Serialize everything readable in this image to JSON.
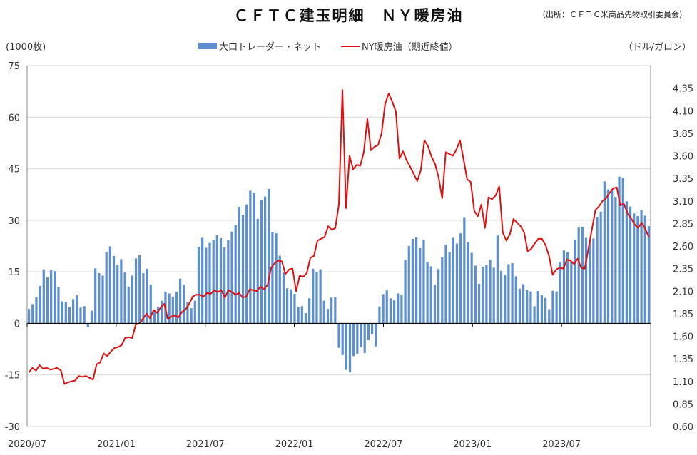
{
  "title": "ＣＦＴＣ建玉明細　ＮＹ暖房油",
  "source": "（出所：ＣＦＴＣ米商品先物取引委員会）",
  "chart_data": {
    "type": "bar+line",
    "title": "ＣＦＴＣ建玉明細　ＮＹ暖房油",
    "y_left_label": "(1000枚)",
    "y_right_label": "（ドル/ガロン）",
    "y_left_range": [
      -30,
      75
    ],
    "y_left_ticks": [
      "75",
      "60",
      "45",
      "30",
      "15",
      "0",
      "-15",
      "-30"
    ],
    "y_right_range": [
      0.6,
      4.6
    ],
    "y_right_ticks": [
      "4.35",
      "4.10",
      "3.85",
      "3.60",
      "3.35",
      "3.10",
      "2.85",
      "2.60",
      "2.35",
      "2.10",
      "1.85",
      "1.60",
      "1.35",
      "1.10",
      "0.85",
      "0.60"
    ],
    "x_ticks": [
      "2020/07",
      "2021/01",
      "2021/07",
      "2022/01",
      "2022/07",
      "2023/01",
      "2023/07"
    ],
    "grid": true,
    "legend_position": "top",
    "series": [
      {
        "name": "大口トレーダー・ネット",
        "type": "bar",
        "axis": "left",
        "color": "#5b8fd2",
        "values": [
          4.2,
          5.6,
          7.7,
          10.9,
          15.7,
          13.4,
          15.5,
          15.2,
          10.6,
          6.4,
          6.2,
          4.8,
          7.1,
          8.2,
          4.6,
          5.0,
          -1.1,
          3.7,
          16.0,
          14.6,
          13.9,
          20.7,
          22.4,
          19.6,
          16.9,
          18.7,
          14.8,
          10.7,
          13.9,
          18.9,
          19.8,
          14.6,
          15.9,
          11.3,
          3.6,
          4.8,
          6.6,
          9.2,
          8.7,
          7.8,
          9.2,
          13.0,
          11.2,
          6.1,
          4.4,
          6.6,
          22.3,
          24.9,
          22.0,
          23.4,
          24.3,
          25.6,
          24.8,
          22.1,
          24.2,
          26.7,
          28.6,
          33.9,
          31.6,
          34.6,
          38.6,
          38.0,
          30.4,
          35.9,
          36.9,
          39.1,
          26.6,
          26.2,
          19.7,
          14.8,
          10.2,
          9.9,
          8.6,
          4.8,
          5.0,
          3.0,
          7.3,
          15.9,
          14.9,
          15.7,
          6.6,
          4.2,
          7.5,
          7.6,
          -7.1,
          -9.2,
          -13.5,
          -14.2,
          -9.5,
          -8.8,
          -6.9,
          -8.6,
          -4.9,
          -3.2,
          -6.7,
          4.9,
          8.5,
          9.6,
          7.3,
          6.7,
          8.7,
          8.2,
          18.5,
          22.5,
          24.6,
          25.0,
          21.9,
          24.4,
          17.9,
          16.6,
          11.2,
          15.8,
          19.3,
          22.9,
          20.7,
          24.9,
          23.2,
          26.2,
          30.9,
          23.6,
          20.5,
          16.8,
          11.5,
          16.5,
          16.9,
          18.5,
          16.2,
          25.6,
          15.3,
          14.0,
          17.2,
          17.5,
          13.7,
          10.1,
          11.4,
          9.7,
          9.3,
          5.0,
          9.4,
          8.2,
          7.4,
          4.1,
          9.5,
          9.3,
          17.9,
          21.2,
          20.7,
          17.9,
          24.4,
          27.9,
          28.1,
          24.9,
          24.2,
          24.7,
          31.0,
          32.5,
          41.3,
          39.0,
          39.1,
          36.8,
          42.7,
          42.3,
          35.5,
          34.0,
          32.0,
          31.2,
          32.9,
          31.3,
          28.3
        ],
        "nonzero_flag": true
      },
      {
        "name": "NY暖房油（期近終値）",
        "type": "line",
        "axis": "right",
        "color": "#e01010",
        "values": [
          1.2,
          1.25,
          1.22,
          1.28,
          1.24,
          1.25,
          1.23,
          1.24,
          1.25,
          1.22,
          1.07,
          1.09,
          1.1,
          1.11,
          1.16,
          1.15,
          1.16,
          1.14,
          1.12,
          1.29,
          1.31,
          1.41,
          1.38,
          1.43,
          1.47,
          1.48,
          1.5,
          1.58,
          1.59,
          1.58,
          1.73,
          1.74,
          1.79,
          1.85,
          1.8,
          1.89,
          1.86,
          1.92,
          1.96,
          1.79,
          1.82,
          1.83,
          1.81,
          1.87,
          1.9,
          1.96,
          2.04,
          2.06,
          2.06,
          2.04,
          2.08,
          2.07,
          2.11,
          2.09,
          2.11,
          2.03,
          2.11,
          2.09,
          2.06,
          2.08,
          2.03,
          2.04,
          2.12,
          2.11,
          2.1,
          2.15,
          2.12,
          2.17,
          2.36,
          2.41,
          2.44,
          2.43,
          2.29,
          2.34,
          2.35,
          2.1,
          2.27,
          2.26,
          2.3,
          2.47,
          2.49,
          2.66,
          2.68,
          2.7,
          2.82,
          2.78,
          2.8,
          3.06,
          4.33,
          3.02,
          3.6,
          3.45,
          3.5,
          3.49,
          3.64,
          4.01,
          3.66,
          3.7,
          3.72,
          3.85,
          4.18,
          4.29,
          4.2,
          4.09,
          3.57,
          3.65,
          3.55,
          3.48,
          3.4,
          3.32,
          3.44,
          3.77,
          3.71,
          3.59,
          3.51,
          3.36,
          3.13,
          3.64,
          3.62,
          3.6,
          3.67,
          3.77,
          3.56,
          3.34,
          3.31,
          2.99,
          2.93,
          3.06,
          2.8,
          3.14,
          3.12,
          3.16,
          3.26,
          2.75,
          2.66,
          2.73,
          2.9,
          2.86,
          2.82,
          2.75,
          2.54,
          2.57,
          2.63,
          2.68,
          2.68,
          2.61,
          2.49,
          2.28,
          2.34,
          2.36,
          2.35,
          2.45,
          2.44,
          2.4,
          2.46,
          2.36,
          2.35,
          2.56,
          2.78,
          3.0,
          3.04,
          3.1,
          3.13,
          3.19,
          3.24,
          3.25,
          3.05,
          3.07,
          2.96,
          2.91,
          2.84,
          2.8,
          2.86,
          2.79,
          2.7
        ]
      }
    ]
  }
}
